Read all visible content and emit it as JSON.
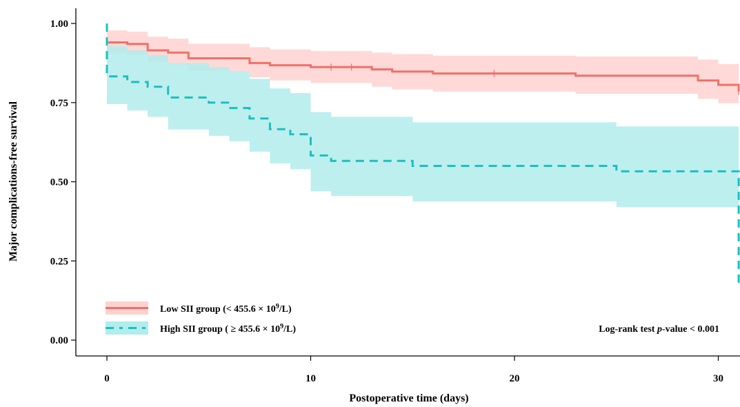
{
  "chart_data": {
    "type": "line",
    "subtype": "kaplan-meier",
    "xlabel": "Postoperative time (days)",
    "ylabel": "Major complications-free survival",
    "xlim": [
      0,
      31
    ],
    "ylim": [
      0,
      1.0
    ],
    "x_ticks": [
      0,
      10,
      20,
      30
    ],
    "x_tick_labels": [
      "0",
      "10",
      "20",
      "30"
    ],
    "y_ticks": [
      0,
      0.25,
      0.5,
      0.75,
      1.0
    ],
    "y_tick_labels": [
      "0.00",
      "0.25",
      "0.50",
      "0.75",
      "1.00"
    ],
    "grid": false,
    "legend_position": "bottom-left",
    "annotation": {
      "prefix": "Log-rank test ",
      "italic": "p",
      "suffix": "-value < 0.001"
    },
    "series": [
      {
        "legend_main": "Low SII group  (< 455.6 × 10",
        "legend_sup": "9",
        "legend_tail": "/L)",
        "color": "#F07068",
        "band_color": "#FFD2D0",
        "line_style": "solid",
        "steps": [
          [
            0,
            0.94
          ],
          [
            1,
            0.935
          ],
          [
            2,
            0.915
          ],
          [
            3,
            0.908
          ],
          [
            4,
            0.89
          ],
          [
            7,
            0.875
          ],
          [
            8,
            0.868
          ],
          [
            10,
            0.862
          ],
          [
            13,
            0.855
          ],
          [
            14,
            0.848
          ],
          [
            16,
            0.842
          ],
          [
            23,
            0.835
          ],
          [
            29,
            0.82
          ],
          [
            30,
            0.806
          ],
          [
            31,
            0.786
          ]
        ],
        "lower": [
          [
            0,
            0.905
          ],
          [
            1,
            0.9
          ],
          [
            2,
            0.878
          ],
          [
            3,
            0.87
          ],
          [
            4,
            0.85
          ],
          [
            7,
            0.83
          ],
          [
            8,
            0.82
          ],
          [
            10,
            0.812
          ],
          [
            13,
            0.8
          ],
          [
            14,
            0.792
          ],
          [
            16,
            0.785
          ],
          [
            23,
            0.778
          ],
          [
            29,
            0.762
          ],
          [
            30,
            0.748
          ],
          [
            31,
            0.748
          ]
        ],
        "upper": [
          [
            0,
            0.978
          ],
          [
            1,
            0.974
          ],
          [
            2,
            0.958
          ],
          [
            3,
            0.952
          ],
          [
            4,
            0.936
          ],
          [
            7,
            0.925
          ],
          [
            8,
            0.918
          ],
          [
            10,
            0.913
          ],
          [
            13,
            0.908
          ],
          [
            14,
            0.903
          ],
          [
            16,
            0.898
          ],
          [
            23,
            0.896
          ],
          [
            29,
            0.886
          ],
          [
            30,
            0.872
          ],
          [
            31,
            0.872
          ]
        ],
        "censored": [
          11,
          12,
          19,
          31
        ]
      },
      {
        "legend_main": "High SII group ( ≥ 455.6 × 10",
        "legend_sup": "9",
        "legend_tail": "/L)",
        "color": "#1CBFBF",
        "band_color": "#B2ECEC",
        "line_style": "dashed",
        "initial_drop": [
          1.0,
          0.833
        ],
        "steps": [
          [
            0,
            0.833
          ],
          [
            1,
            0.815
          ],
          [
            2,
            0.8
          ],
          [
            3,
            0.766
          ],
          [
            5,
            0.75
          ],
          [
            6,
            0.733
          ],
          [
            7,
            0.7
          ],
          [
            8,
            0.666
          ],
          [
            9,
            0.65
          ],
          [
            10,
            0.583
          ],
          [
            11,
            0.566
          ],
          [
            15,
            0.55
          ],
          [
            25,
            0.533
          ],
          [
            31,
            0.18
          ]
        ],
        "lower": [
          [
            0,
            0.745
          ],
          [
            1,
            0.725
          ],
          [
            2,
            0.705
          ],
          [
            3,
            0.665
          ],
          [
            5,
            0.645
          ],
          [
            6,
            0.628
          ],
          [
            7,
            0.595
          ],
          [
            8,
            0.558
          ],
          [
            9,
            0.54
          ],
          [
            10,
            0.47
          ],
          [
            11,
            0.455
          ],
          [
            15,
            0.438
          ],
          [
            25,
            0.42
          ],
          [
            31,
            0.42
          ]
        ],
        "upper": [
          [
            0,
            0.928
          ],
          [
            1,
            0.915
          ],
          [
            2,
            0.9
          ],
          [
            3,
            0.875
          ],
          [
            5,
            0.862
          ],
          [
            6,
            0.85
          ],
          [
            7,
            0.825
          ],
          [
            8,
            0.795
          ],
          [
            9,
            0.78
          ],
          [
            10,
            0.72
          ],
          [
            11,
            0.705
          ],
          [
            15,
            0.688
          ],
          [
            25,
            0.675
          ],
          [
            31,
            0.675
          ]
        ],
        "censored": []
      }
    ]
  }
}
